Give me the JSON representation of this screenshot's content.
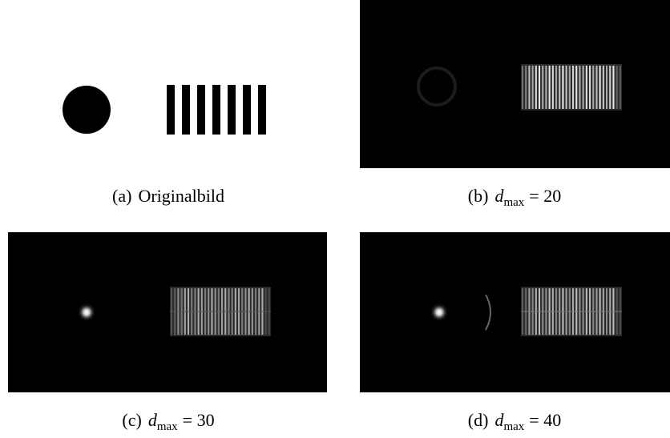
{
  "figure": {
    "subfigures": [
      {
        "label": "(a)",
        "caption": "Originalbild"
      },
      {
        "label": "(b)",
        "variable": "d",
        "subscript": "max",
        "relation": "= 20"
      },
      {
        "label": "(c)",
        "variable": "d",
        "subscript": "max",
        "relation": "= 30"
      },
      {
        "label": "(d)",
        "variable": "d",
        "subscript": "max",
        "relation": "= 40"
      }
    ]
  }
}
